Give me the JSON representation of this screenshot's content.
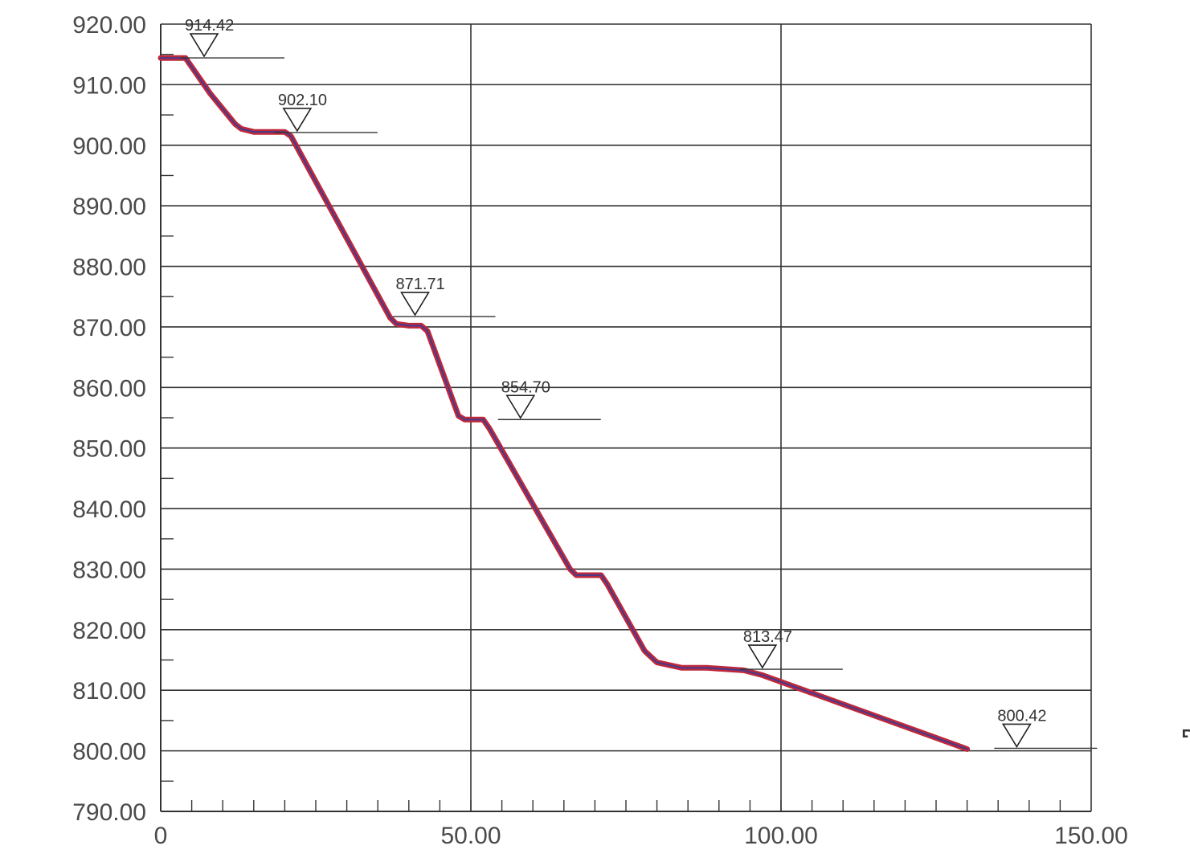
{
  "chart_data": {
    "type": "line",
    "xlim": [
      0,
      150
    ],
    "ylim": [
      790,
      920
    ],
    "x_ticks": [
      {
        "value": 0,
        "label": "0"
      },
      {
        "value": 50,
        "label": "50.00"
      },
      {
        "value": 100,
        "label": "100.00"
      },
      {
        "value": 150,
        "label": "150.00"
      }
    ],
    "y_ticks": [
      {
        "value": 920,
        "label": "920.00"
      },
      {
        "value": 910,
        "label": "910.00"
      },
      {
        "value": 900,
        "label": "900.00"
      },
      {
        "value": 890,
        "label": "890.00"
      },
      {
        "value": 880,
        "label": "880.00"
      },
      {
        "value": 870,
        "label": "870.00"
      },
      {
        "value": 860,
        "label": "860.00"
      },
      {
        "value": 850,
        "label": "850.00"
      },
      {
        "value": 840,
        "label": "840.00"
      },
      {
        "value": 830,
        "label": "830.00"
      },
      {
        "value": 820,
        "label": "820.00"
      },
      {
        "value": 810,
        "label": "810.00"
      },
      {
        "value": 800,
        "label": "800.00"
      },
      {
        "value": 790,
        "label": "790.00"
      }
    ],
    "grid": true,
    "series": [
      {
        "color": "#c0283a",
        "x": [
          0,
          4,
          8,
          12,
          13,
          15,
          17,
          20,
          21,
          37,
          38,
          40,
          42,
          43,
          48,
          49,
          52,
          53,
          66,
          67,
          71,
          72,
          78,
          80,
          84,
          88,
          94,
          97,
          130
        ],
        "y": [
          914.4,
          914.4,
          908.5,
          903.5,
          902.7,
          902.2,
          902.2,
          902.2,
          901.5,
          871.5,
          870.5,
          870.2,
          870.2,
          869.3,
          855.3,
          854.7,
          854.7,
          853.2,
          830,
          829,
          829,
          827.5,
          816.5,
          814.6,
          813.7,
          813.7,
          813.3,
          812.5,
          800.3
        ]
      }
    ],
    "water_levels": [
      {
        "x": 7,
        "y": 914.42,
        "label": "914.42"
      },
      {
        "x": 22,
        "y": 902.1,
        "label": "902.10"
      },
      {
        "x": 41,
        "y": 871.71,
        "label": "871.71"
      },
      {
        "x": 58,
        "y": 854.7,
        "label": "854.70"
      },
      {
        "x": 97,
        "y": 813.47,
        "label": "813.47"
      },
      {
        "x": 138,
        "y": 800.42,
        "label": "800.42"
      }
    ],
    "annotation": "משטח טורף",
    "colors": {
      "grid": "#333333",
      "line_outer": "#c0283a",
      "line_inner": "#4a3a8a"
    }
  }
}
